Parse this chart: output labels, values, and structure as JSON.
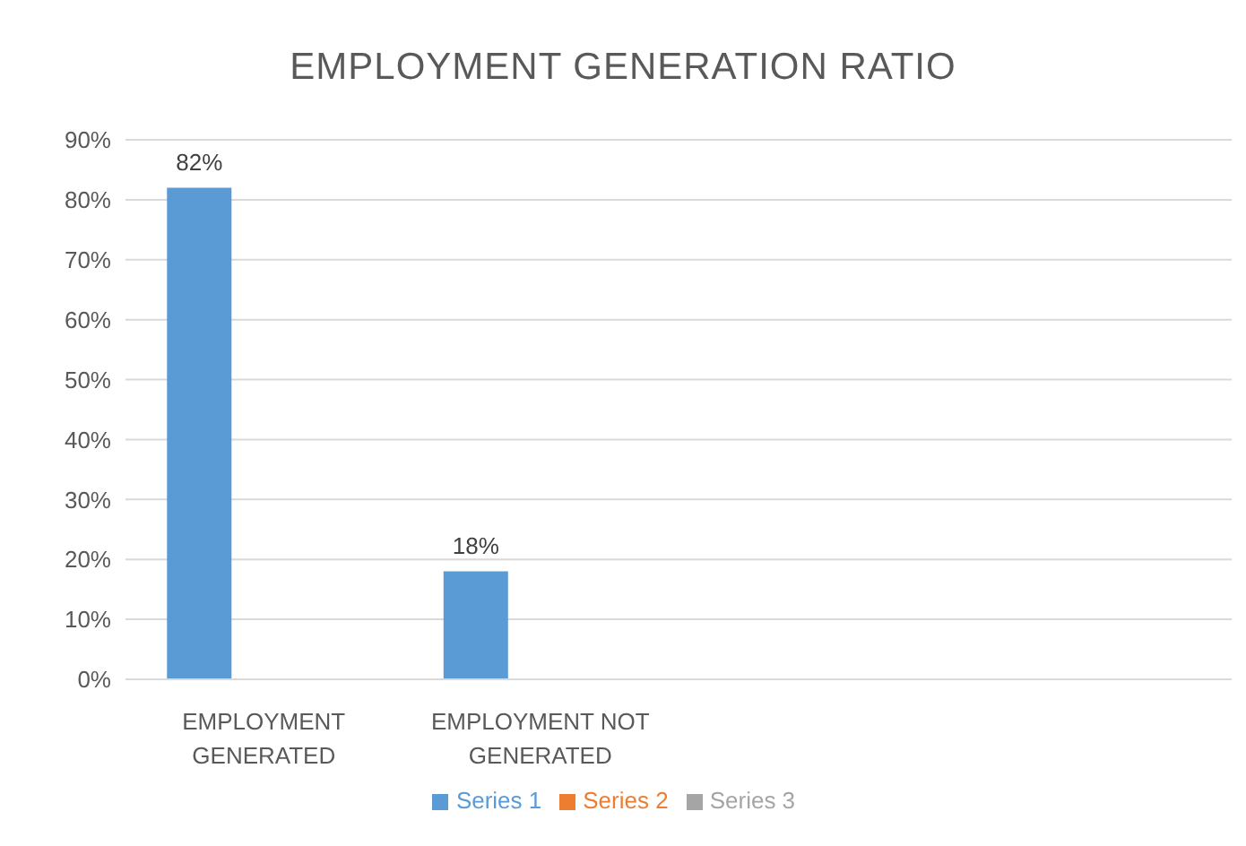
{
  "chart_data": {
    "type": "bar",
    "title": "EMPLOYMENT GENERATION RATIO",
    "categories": [
      "EMPLOYMENT GENERATED",
      "EMPLOYMENT NOT GENERATED",
      null,
      null
    ],
    "series": [
      {
        "name": "Series 1",
        "color": "#5b9bd5",
        "values": [
          82,
          18,
          null,
          null
        ],
        "value_labels": [
          "82%",
          "18%",
          null,
          null
        ]
      },
      {
        "name": "Series 2",
        "color": "#ed7d31",
        "values": [
          null,
          null,
          null,
          null
        ]
      },
      {
        "name": "Series 3",
        "color": "#a5a5a5",
        "values": [
          null,
          null,
          null,
          null
        ]
      }
    ],
    "ylim": [
      0,
      90
    ],
    "yticks": [
      {
        "value": 0,
        "label": "0%"
      },
      {
        "value": 10,
        "label": "10%"
      },
      {
        "value": 20,
        "label": "20%"
      },
      {
        "value": 30,
        "label": "30%"
      },
      {
        "value": 40,
        "label": "40%"
      },
      {
        "value": 50,
        "label": "50%"
      },
      {
        "value": 60,
        "label": "60%"
      },
      {
        "value": 70,
        "label": "70%"
      },
      {
        "value": 80,
        "label": "80%"
      },
      {
        "value": 90,
        "label": "90%"
      }
    ],
    "grid": "y",
    "legend": "bottom"
  }
}
